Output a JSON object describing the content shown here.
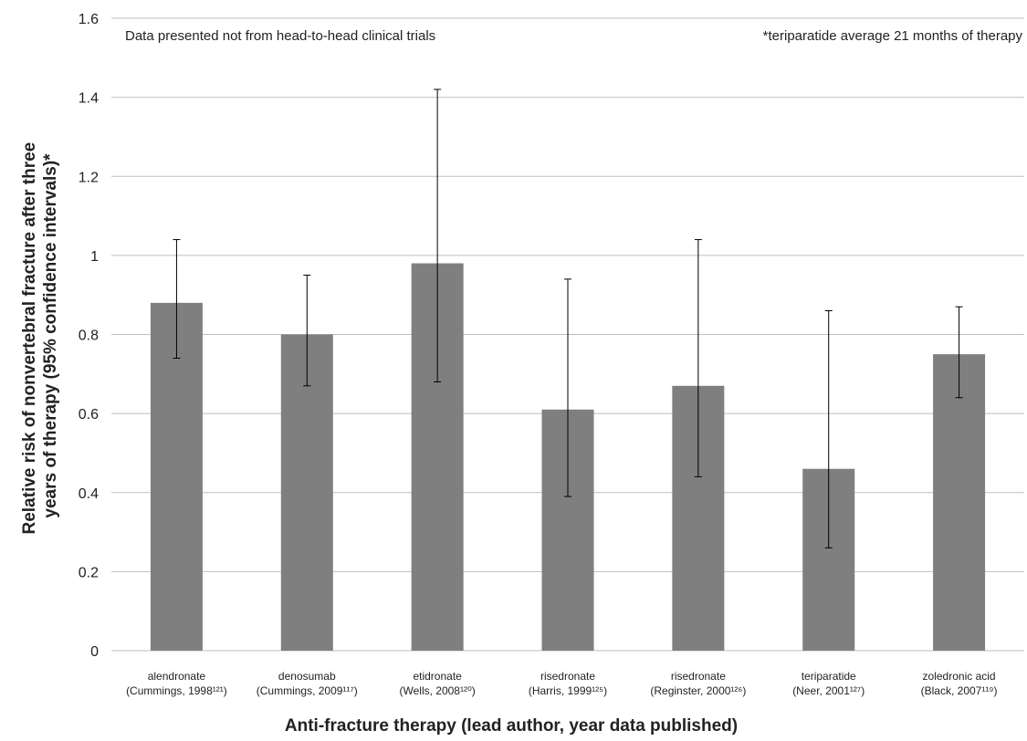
{
  "chart_data": {
    "type": "bar",
    "categories": [
      [
        "alendronate",
        "(Cummings, 1998¹²¹)"
      ],
      [
        "denosumab",
        "(Cummings, 2009¹¹⁷)"
      ],
      [
        "etidronate",
        "(Wells, 2008¹²⁰)"
      ],
      [
        "risedronate",
        "(Harris, 1999¹²⁵)"
      ],
      [
        "risedronate",
        "(Reginster, 2000¹²⁶)"
      ],
      [
        "teriparatide",
        "(Neer, 2001¹²⁷)"
      ],
      [
        "zoledronic acid",
        "(Black, 2007¹¹⁹)"
      ]
    ],
    "values": [
      0.88,
      0.8,
      0.98,
      0.61,
      0.67,
      0.46,
      0.75
    ],
    "ci_lower": [
      0.74,
      0.67,
      0.68,
      0.39,
      0.44,
      0.26,
      0.64
    ],
    "ci_upper": [
      1.04,
      0.95,
      1.42,
      0.94,
      1.04,
      0.86,
      0.87
    ],
    "ylim": [
      0,
      1.6
    ],
    "yticks": [
      0,
      0.2,
      0.4,
      0.6,
      0.8,
      1,
      1.2,
      1.4,
      1.6
    ],
    "ytick_labels": [
      "0",
      "0.2",
      "0.4",
      "0.6",
      "0.8",
      "1",
      "1.2",
      "1.4",
      "1.6"
    ],
    "xlabel": "Anti-fracture therapy (lead author, year data published)",
    "ylabel_lines": [
      "Relative risk of nonvertebral fracture after three",
      "years of therapy (95% confidence intervals)*"
    ],
    "annotations": [
      "Data presented not from head-to-head clinical trials",
      "*teriparatide average 21 months of therapy"
    ],
    "grid": true,
    "bar_color": "#7f7f7f",
    "grid_color": "#bfbfbf",
    "error_bar_color": "#000000"
  }
}
